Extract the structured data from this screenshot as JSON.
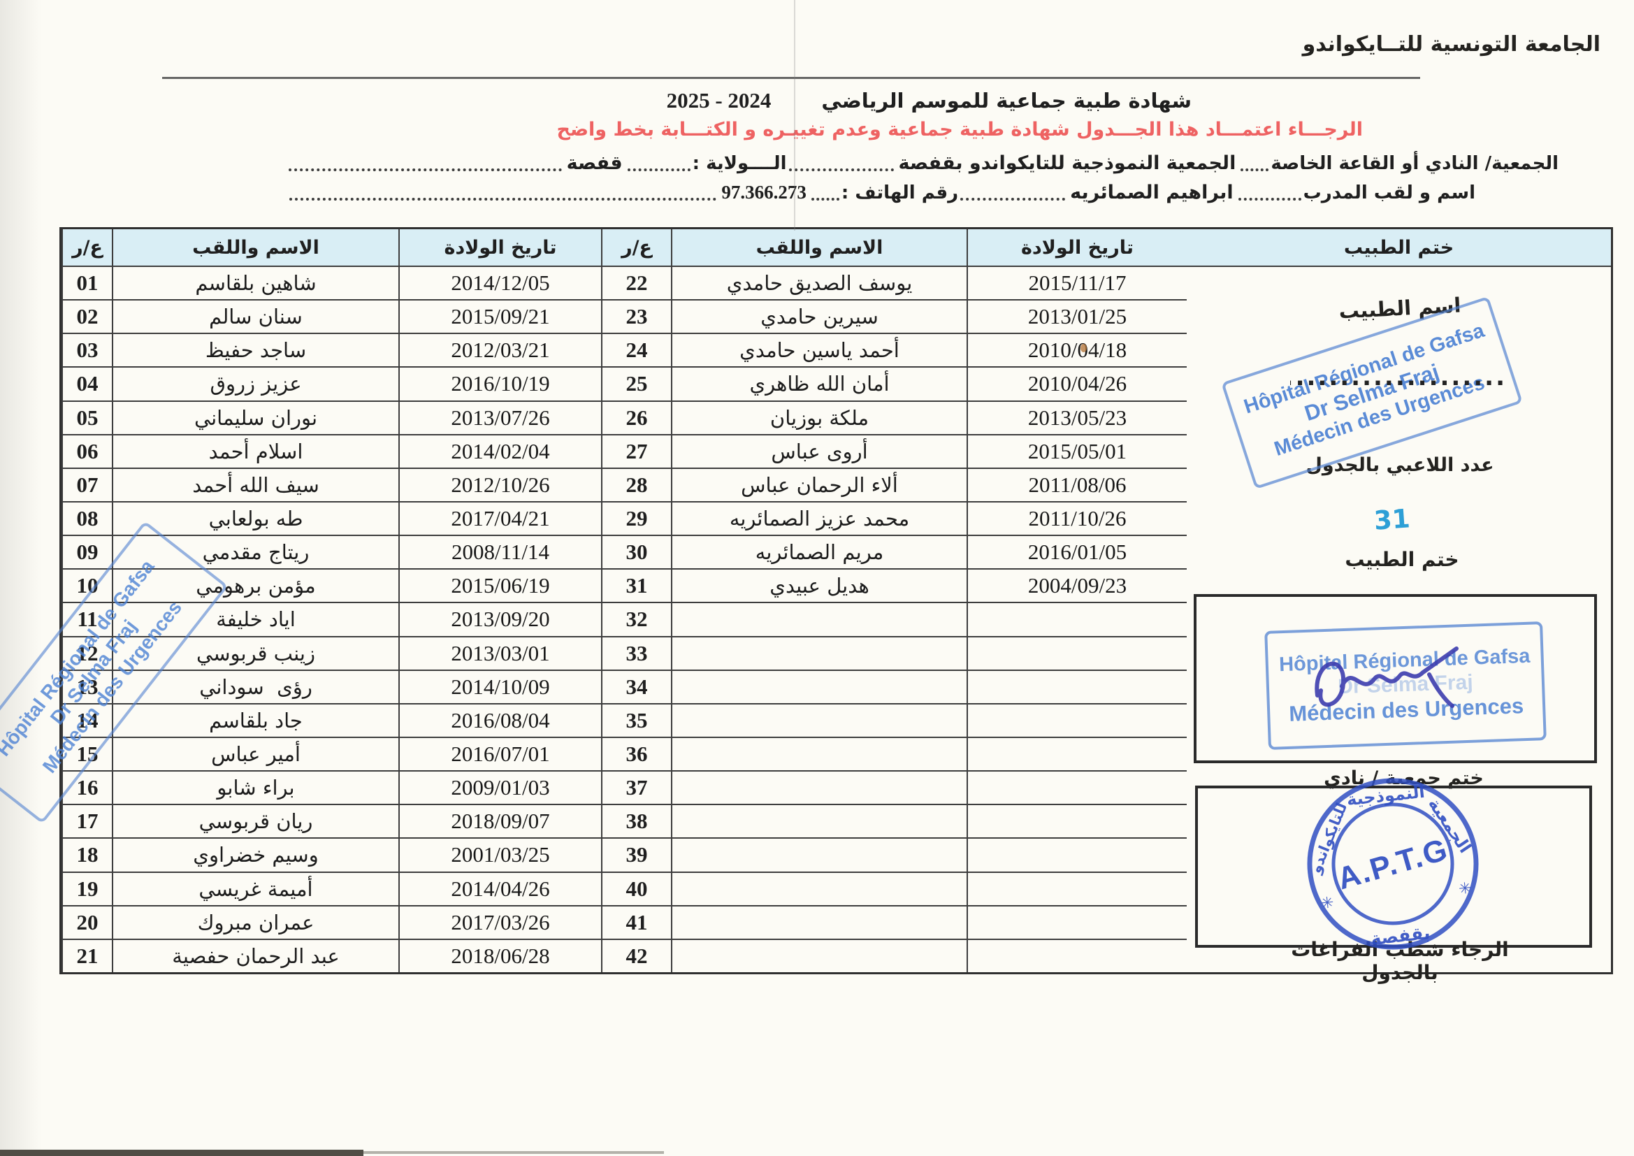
{
  "page": {
    "org_title": "الجامعة التونسية للتــايكواندو",
    "doc_title": "شهادة طبية جماعية للموسم الرياضي",
    "season": "2024 - 2025",
    "red_instruction": "الرجـــاء اعتمـــاد هذا الجـــدول  شهادة طبية جماعية وعدم تغييـره و الكتـــابة بخط واضح",
    "fields": {
      "club_label": "الجمعية/ النادي أو القاعة الخاصة",
      "club_value": "الجمعية النموذجية للتايكواندو بقفصة",
      "state_label": "الــــولاية :",
      "state_value": "قفصة",
      "coach_label": "اسم و لقب المدرب",
      "coach_value": "ابراهيم الصمائريه",
      "phone_label": "رقم الهاتف :",
      "phone_value": "97.366.273"
    }
  },
  "table": {
    "headers": {
      "num": "ع/ر",
      "name": "الاسم واللقب",
      "dob": "تاريخ الولادة",
      "stamp": "ختم الطبيب"
    },
    "rows": [
      {
        "rn": "01",
        "rname": "شاهين بلقاسم",
        "rdob": "2014/12/05",
        "ln": "22",
        "lname": "يوسف الصديق حامدي",
        "ldob": "2015/11/17"
      },
      {
        "rn": "02",
        "rname": "سنان سالم",
        "rdob": "2015/09/21",
        "ln": "23",
        "lname": "سيرين حامدي",
        "ldob": "2013/01/25"
      },
      {
        "rn": "03",
        "rname": "ساجد حفيظ",
        "rdob": "2012/03/21",
        "ln": "24",
        "lname": "أحمد ياسين حامدي",
        "ldob": "2010/04/18"
      },
      {
        "rn": "04",
        "rname": "عزيز زروق",
        "rdob": "2016/10/19",
        "ln": "25",
        "lname": "أمان الله ظاهري",
        "ldob": "2010/04/26"
      },
      {
        "rn": "05",
        "rname": "نوران سليماني",
        "rdob": "2013/07/26",
        "ln": "26",
        "lname": "ملكة بوزيان",
        "ldob": "2013/05/23"
      },
      {
        "rn": "06",
        "rname": "اسلام أحمد",
        "rdob": "2014/02/04",
        "ln": "27",
        "lname": "أروى عباس",
        "ldob": "2015/05/01"
      },
      {
        "rn": "07",
        "rname": "سيف الله أحمد",
        "rdob": "2012/10/26",
        "ln": "28",
        "lname": "ألاء الرحمان عباس",
        "ldob": "2011/08/06"
      },
      {
        "rn": "08",
        "rname": "طه بولعابي",
        "rdob": "2017/04/21",
        "ln": "29",
        "lname": "محمد عزيز الصمائريه",
        "ldob": "2011/10/26"
      },
      {
        "rn": "09",
        "rname": "ريتاج مقدمي",
        "rdob": "2008/11/14",
        "ln": "30",
        "lname": "مريم الصمائريه",
        "ldob": "2016/01/05"
      },
      {
        "rn": "10",
        "rname": "مؤمن برهومي",
        "rdob": "2015/06/19",
        "ln": "31",
        "lname": "هديل عبيدي",
        "ldob": "2004/09/23"
      },
      {
        "rn": "11",
        "rname": "اياد خليفة",
        "rdob": "2013/09/20",
        "ln": "32",
        "lname": "",
        "ldob": ""
      },
      {
        "rn": "12",
        "rname": "زينب قربوسي",
        "rdob": "2013/03/01",
        "ln": "33",
        "lname": "",
        "ldob": ""
      },
      {
        "rn": "13",
        "rname": "رؤى  سوداني",
        "rdob": "2014/10/09",
        "ln": "34",
        "lname": "",
        "ldob": ""
      },
      {
        "rn": "14",
        "rname": "جاد بلقاسم",
        "rdob": "2016/08/04",
        "ln": "35",
        "lname": "",
        "ldob": ""
      },
      {
        "rn": "15",
        "rname": "أمير عباس",
        "rdob": "2016/07/01",
        "ln": "36",
        "lname": "",
        "ldob": ""
      },
      {
        "rn": "16",
        "rname": "براء شابو",
        "rdob": "2009/01/03",
        "ln": "37",
        "lname": "",
        "ldob": ""
      },
      {
        "rn": "17",
        "rname": "ريان قربوسي",
        "rdob": "2018/09/07",
        "ln": "38",
        "lname": "",
        "ldob": ""
      },
      {
        "rn": "18",
        "rname": "وسيم خضراوي",
        "rdob": "2001/03/25",
        "ln": "39",
        "lname": "",
        "ldob": ""
      },
      {
        "rn": "19",
        "rname": "أميمة غريسي",
        "rdob": "2014/04/26",
        "ln": "40",
        "lname": "",
        "ldob": ""
      },
      {
        "rn": "20",
        "rname": "عمران مبروك",
        "rdob": "2017/03/26",
        "ln": "41",
        "lname": "",
        "ldob": ""
      },
      {
        "rn": "21",
        "rname": "عبد الرحمان حفصية",
        "rdob": "2018/06/28",
        "ln": "42",
        "lname": "",
        "ldob": ""
      }
    ]
  },
  "stamp_column": {
    "doctor_name_label": "اسم الطبيب",
    "dotted_line": "......................",
    "players_count_label": "عدد اللاعبي بالجدول",
    "players_count_value": "31",
    "doctor_stamp_label": "ختم الطبيب",
    "club_stamp_label": "ختم جمعية / نادي",
    "footer_note": "الرجاء شطب الفراغات بالجدول",
    "hospital_stamp": {
      "line1": "Hôpital Régional de Gafsa",
      "line2": "Dr Selma Fraj",
      "line3": "Médecin des Urgences"
    },
    "club_stamp": {
      "center": "A.P.T.G",
      "ring_right": "الجمعية",
      "ring_top": "النموذجية",
      "ring_left": "للتايكواندو",
      "ring_bottom": "بقفصة",
      "star": "✳"
    }
  },
  "colors": {
    "header_bg": "#d9eef5",
    "red_text": "#ee6262",
    "hospital_stamp_blue": "#4d82d4",
    "club_stamp_blue": "#2f4ec2",
    "handwriting_blue": "#2d9fd6",
    "ink_signature": "#3c3cae"
  }
}
